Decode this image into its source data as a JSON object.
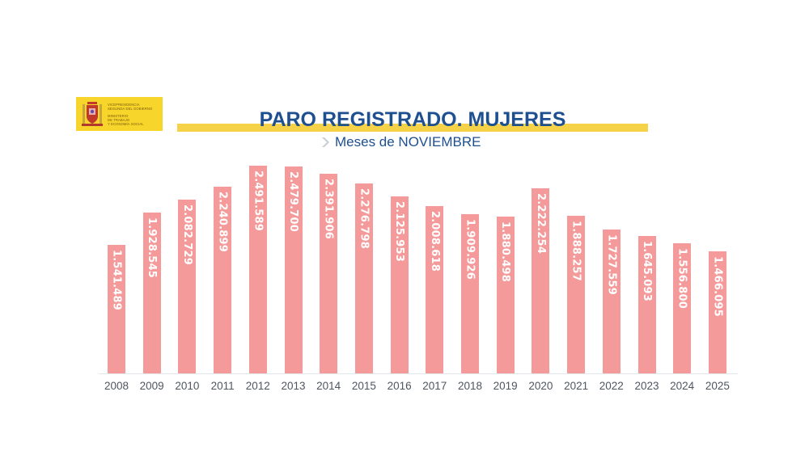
{
  "logo": {
    "icon": "spain-coat-of-arms-icon",
    "background": "#f7d52a",
    "lines_top": [
      "VICEPRESIDENCIA",
      "SEGUNDA DEL GOBIERNO"
    ],
    "lines_bottom": [
      "MINISTERIO",
      "DE TRABAJO",
      "Y ECONOMÍA SOCIAL"
    ]
  },
  "header": {
    "title": "PARO REGISTRADO. MUJERES",
    "subtitle": "Meses de NOVIEMBRE",
    "subtitle_icon": "chevron-right-icon",
    "title_color": "#1e4f8f",
    "band_color": "#f6d248"
  },
  "chart_data": {
    "type": "bar",
    "title": "PARO REGISTRADO. MUJERES",
    "subtitle": "Meses de NOVIEMBRE",
    "xlabel": "",
    "ylabel": "",
    "grid": false,
    "legend": null,
    "bar_color": "#f59a9a",
    "label_color": "#ffffff",
    "label_orientation": "vertical",
    "ylim": [
      0,
      2600000
    ],
    "categories": [
      "2008",
      "2009",
      "2010",
      "2011",
      "2012",
      "2013",
      "2014",
      "2015",
      "2016",
      "2017",
      "2018",
      "2019",
      "2020",
      "2021",
      "2022",
      "2023",
      "2024",
      "2025"
    ],
    "values": [
      1541489,
      1928545,
      2082729,
      2240899,
      2491589,
      2479700,
      2391906,
      2276798,
      2125953,
      2008618,
      1909926,
      1880498,
      2222254,
      1888257,
      1727559,
      1645093,
      1556800,
      1466095
    ],
    "labels": [
      "1.541.489",
      "1.928.545",
      "2.082.729",
      "2.240.899",
      "2.491.589",
      "2.479.700",
      "2.391.906",
      "2.276.798",
      "2.125.953",
      "2.008.618",
      "1.909.926",
      "1.880.498",
      "2.222.254",
      "1.888.257",
      "1.727.559",
      "1.645.093",
      "1.556.800",
      "1.466.095"
    ]
  }
}
